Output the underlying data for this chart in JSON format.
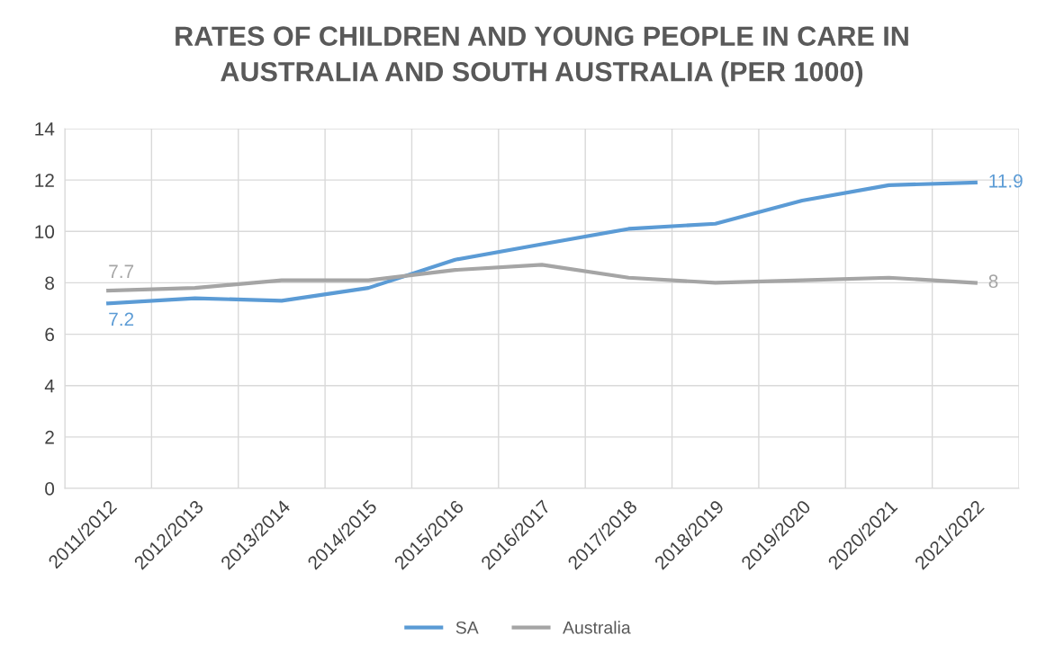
{
  "chart_data": {
    "type": "line",
    "title": "RATES OF CHILDREN AND YOUNG PEOPLE IN CARE IN\nAUSTRALIA AND SOUTH AUSTRALIA (PER 1000)",
    "categories": [
      "2011/2012",
      "2012/2013",
      "2013/2014",
      "2014/2015",
      "2015/2016",
      "2016/2017",
      "2017/2018",
      "2018/2019",
      "2019/2020",
      "2020/2021",
      "2021/2022"
    ],
    "series": [
      {
        "name": "SA",
        "color": "#5b9bd5",
        "values": [
          7.2,
          7.4,
          7.3,
          7.8,
          8.9,
          9.5,
          10.1,
          10.3,
          11.2,
          11.8,
          11.9
        ],
        "value_labels": [
          "7.2",
          null,
          null,
          null,
          null,
          null,
          null,
          null,
          null,
          null,
          "11.9"
        ]
      },
      {
        "name": "Australia",
        "color": "#a5a5a5",
        "values": [
          7.7,
          7.8,
          8.1,
          8.1,
          8.5,
          8.7,
          8.2,
          8.0,
          8.1,
          8.2,
          8.0
        ],
        "value_labels": [
          "7.7",
          null,
          null,
          null,
          null,
          null,
          null,
          null,
          null,
          null,
          "8"
        ]
      }
    ],
    "ylim": [
      0,
      14
    ],
    "yticks": [
      0,
      2,
      4,
      6,
      8,
      10,
      12,
      14
    ],
    "grid": true,
    "legend": "bottom",
    "marker": "none",
    "line_style": "solid"
  }
}
